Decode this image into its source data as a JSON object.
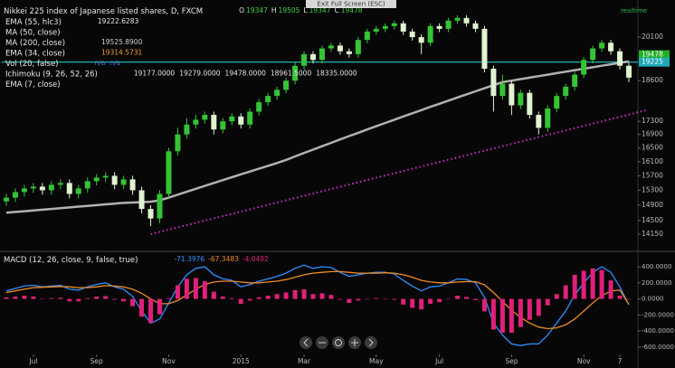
{
  "chart_data": [
    {
      "type": "candlestick",
      "title": "Nikkei 225 index of Japanese listed shares, D, FXCM",
      "ohlc": [
        {
          "label": "O",
          "value": 19347
        },
        {
          "label": "H",
          "value": 19505
        },
        {
          "label": "L",
          "value": 19347
        },
        {
          "label": "C",
          "value": 19478
        }
      ],
      "status": "realtime",
      "tooltip": "Exit Full Screen (ESC)",
      "indicators": [
        {
          "name": "EMA (55, hlc3)",
          "readout": [
            "19222.6283"
          ]
        },
        {
          "name": "MA (50, close)",
          "readout": []
        },
        {
          "name": "MA (200, close)",
          "readout": [
            "19525.8900"
          ],
          "color": "#cfcfcf",
          "values": [
            14700,
            14720,
            14740,
            14760,
            14780,
            14800,
            14820,
            14840,
            14860,
            14880,
            14900,
            14920,
            14940,
            14960,
            14970,
            14980,
            14990,
            15030,
            15100,
            15180,
            15260,
            15340,
            15420,
            15500,
            15580,
            15660,
            15740,
            15820,
            15900,
            15980,
            16060,
            16150,
            16250,
            16350,
            16450,
            16550,
            16650,
            16750,
            16850,
            16950,
            17050,
            17150,
            17250,
            17350,
            17450,
            17550,
            17650,
            17750,
            17850,
            17950,
            18050,
            18150,
            18250,
            18350,
            18450,
            18550,
            18600,
            18650,
            18700,
            18750,
            18800,
            18850,
            18900,
            18950,
            19000,
            19050,
            19100,
            19150,
            19200,
            19250
          ]
        },
        {
          "name": "EMA (34, close)",
          "readout": [
            "19314.5731"
          ],
          "color": "#f0a030"
        },
        {
          "name": "Vol (20, false)",
          "readout": [
            "n/a",
            "n/a"
          ],
          "color": "#3a7bd5"
        },
        {
          "name": "Ichimoku (9, 26, 52, 26)",
          "readout": [
            "19177.0000",
            "19279.0000",
            "19478.0000",
            "18961.5000",
            "18335.0000"
          ]
        },
        {
          "name": "EMA (7, close)",
          "readout": []
        }
      ],
      "open": [
        15000,
        15100,
        15250,
        15350,
        15400,
        15300,
        15450,
        15500,
        15200,
        15350,
        15550,
        15650,
        15700,
        15450,
        15600,
        15300,
        14800,
        14550,
        15200,
        16400,
        16900,
        17200,
        17350,
        17500,
        17050,
        17300,
        17450,
        17200,
        17600,
        17900,
        18100,
        18300,
        18600,
        19100,
        19500,
        19300,
        19700,
        19800,
        19600,
        19500,
        20000,
        20300,
        20400,
        20500,
        20600,
        20300,
        20100,
        19900,
        20500,
        20400,
        20700,
        20800,
        20600,
        20400,
        19000,
        18100,
        18500,
        17800,
        18200,
        17500,
        17100,
        17700,
        18100,
        18400,
        18800,
        19300,
        19700,
        19900,
        19600,
        19100
      ],
      "high": [
        15200,
        15350,
        15450,
        15500,
        15500,
        15550,
        15600,
        15600,
        15450,
        15650,
        15750,
        15800,
        15800,
        15700,
        15700,
        15400,
        14900,
        15300,
        16500,
        17100,
        17400,
        17500,
        17600,
        17600,
        17400,
        17550,
        17550,
        17700,
        18000,
        18200,
        18400,
        18700,
        19200,
        19600,
        19600,
        19800,
        19900,
        19900,
        19700,
        20100,
        20400,
        20500,
        20600,
        20700,
        20700,
        20400,
        20200,
        20600,
        20600,
        20800,
        20900,
        20900,
        20700,
        20500,
        19100,
        18800,
        18600,
        18300,
        18300,
        17600,
        17800,
        18200,
        18500,
        18900,
        19400,
        19800,
        20000,
        20000,
        19700,
        19200
      ],
      "low": [
        14880,
        14980,
        15130,
        15230,
        15180,
        15180,
        15330,
        15080,
        15080,
        15230,
        15430,
        15530,
        15330,
        15330,
        15180,
        14680,
        14350,
        14430,
        15080,
        16280,
        16780,
        17080,
        17230,
        16900,
        16930,
        17180,
        17080,
        17080,
        17480,
        17780,
        17980,
        18180,
        18480,
        18980,
        19180,
        19180,
        19580,
        19480,
        19380,
        19380,
        19880,
        20180,
        20280,
        20380,
        20180,
        19980,
        19500,
        19780,
        20280,
        20280,
        20580,
        20480,
        20280,
        18880,
        17600,
        17980,
        17500,
        17680,
        17380,
        16900,
        16980,
        17580,
        17980,
        18280,
        18680,
        19180,
        19580,
        19480,
        18980,
        18550
      ],
      "close": [
        15100,
        15250,
        15350,
        15400,
        15300,
        15450,
        15500,
        15200,
        15350,
        15550,
        15650,
        15700,
        15450,
        15600,
        15300,
        14800,
        14550,
        15200,
        16400,
        16900,
        17200,
        17350,
        17500,
        17050,
        17300,
        17450,
        17200,
        17600,
        17900,
        18100,
        18300,
        18600,
        19100,
        19500,
        19300,
        19700,
        19800,
        19600,
        19500,
        20000,
        20300,
        20400,
        20500,
        20600,
        20300,
        20100,
        19900,
        20500,
        20400,
        20700,
        20800,
        20600,
        20400,
        19000,
        18100,
        18500,
        17800,
        18200,
        17500,
        17100,
        17700,
        18100,
        18400,
        18800,
        19300,
        19700,
        19900,
        19600,
        19100,
        18700
      ],
      "up_color": "#35c435",
      "down_color": "#dff3cf",
      "hlines": [
        {
          "value": 19225,
          "color": "#2ec4c4"
        }
      ],
      "trendline": {
        "x": [
          16,
          71
        ],
        "y": [
          14150,
          17650
        ],
        "color": "#d02cd0"
      },
      "price_markers": [
        {
          "value": 19478,
          "color": "#22b022"
        },
        {
          "value": 19225,
          "color": "#1fa9b8"
        }
      ],
      "xlim": [
        -0.5,
        69.5
      ],
      "xticks": [
        {
          "value": 3,
          "label": "Jul"
        },
        {
          "value": 10,
          "label": "Sep"
        },
        {
          "value": 18,
          "label": "Nov"
        },
        {
          "value": 26,
          "label": "2015"
        },
        {
          "value": 33,
          "label": "Mar"
        },
        {
          "value": 41,
          "label": "May"
        },
        {
          "value": 48,
          "label": "Jul"
        },
        {
          "value": 56,
          "label": "Sep"
        },
        {
          "value": 64,
          "label": "Nov"
        },
        {
          "value": 68,
          "label": "7"
        }
      ],
      "ylim": [
        13900,
        21200
      ],
      "log_scale": true,
      "yticks": [
        20100,
        18600,
        17300,
        16900,
        16500,
        16100,
        15700,
        15300,
        14900,
        14500,
        14150
      ]
    },
    {
      "type": "macd",
      "title": "MACD (12, 26, close, 9, false, true)",
      "series": [
        {
          "color": "#2f8fff",
          "style": "line",
          "values": [
            100,
            130,
            160,
            170,
            150,
            160,
            170,
            120,
            110,
            150,
            180,
            200,
            150,
            120,
            30,
            -150,
            -300,
            -250,
            -50,
            150,
            300,
            380,
            400,
            300,
            250,
            230,
            150,
            180,
            220,
            250,
            280,
            320,
            380,
            420,
            380,
            400,
            390,
            330,
            280,
            300,
            320,
            330,
            330,
            310,
            230,
            160,
            100,
            150,
            160,
            200,
            250,
            240,
            200,
            20,
            -300,
            -450,
            -560,
            -580,
            -560,
            -560,
            -450,
            -300,
            -150,
            50,
            200,
            330,
            400,
            330,
            150,
            -71.3976
          ]
        },
        {
          "color": "#f08a24",
          "style": "line",
          "values": [
            80,
            100,
            120,
            140,
            145,
            150,
            155,
            150,
            140,
            140,
            150,
            165,
            160,
            150,
            120,
            70,
            0,
            -60,
            -60,
            -20,
            50,
            120,
            180,
            210,
            220,
            220,
            210,
            200,
            200,
            210,
            220,
            240,
            270,
            300,
            320,
            330,
            340,
            340,
            330,
            320,
            320,
            320,
            325,
            320,
            300,
            270,
            230,
            210,
            200,
            200,
            210,
            215,
            215,
            175,
            80,
            -30,
            -140,
            -230,
            -300,
            -350,
            -370,
            -360,
            -320,
            -250,
            -150,
            -50,
            40,
            100,
            110,
            -67.3483
          ]
        },
        {
          "color": "#e0207a",
          "style": "histogram",
          "values": [
            20,
            30,
            40,
            30,
            5,
            10,
            15,
            -30,
            -30,
            10,
            30,
            35,
            -10,
            -30,
            -90,
            -220,
            -300,
            -190,
            10,
            170,
            250,
            260,
            220,
            90,
            30,
            10,
            -60,
            -20,
            20,
            40,
            60,
            80,
            110,
            120,
            60,
            70,
            50,
            -10,
            -50,
            -20,
            0,
            10,
            5,
            -10,
            -70,
            -110,
            -130,
            -60,
            -40,
            0,
            40,
            25,
            -15,
            -155,
            -380,
            -420,
            -420,
            -350,
            -260,
            -210,
            -80,
            60,
            170,
            300,
            350,
            380,
            360,
            230,
            40,
            -4.0492
          ]
        }
      ],
      "ylim": [
        -690,
        535
      ],
      "yticks": [
        {
          "value": 400,
          "label": "400.0000"
        },
        {
          "value": 200,
          "label": "200.0000"
        },
        {
          "value": 0,
          "label": "0.0000"
        },
        {
          "value": -200,
          "label": "-200.0000"
        },
        {
          "value": -400,
          "label": "-400.0000"
        },
        {
          "value": -600,
          "label": "-600.0000"
        }
      ]
    }
  ]
}
